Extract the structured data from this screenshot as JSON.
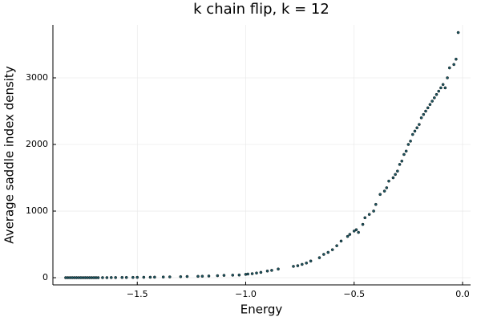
{
  "chart_data": {
    "type": "scatter",
    "title": "k chain flip, k = 12",
    "xlabel": "Energy",
    "ylabel": "Average saddle index density",
    "xlim": [
      -1.889,
      0.037
    ],
    "ylim": [
      -108,
      3795
    ],
    "xticks": [
      {
        "value": -1.5,
        "label": "−1.5"
      },
      {
        "value": -1.0,
        "label": "−1.0"
      },
      {
        "value": -0.5,
        "label": "−0.5"
      },
      {
        "value": 0.0,
        "label": "0.0"
      }
    ],
    "yticks": [
      0,
      1000,
      2000,
      3000
    ],
    "grid": true,
    "color": "#1d5560",
    "x": [
      -1.83,
      -1.82,
      -1.81,
      -1.8,
      -1.79,
      -1.78,
      -1.77,
      -1.76,
      -1.75,
      -1.74,
      -1.73,
      -1.72,
      -1.71,
      -1.7,
      -1.69,
      -1.68,
      -1.66,
      -1.64,
      -1.62,
      -1.6,
      -1.57,
      -1.55,
      -1.52,
      -1.5,
      -1.47,
      -1.44,
      -1.42,
      -1.38,
      -1.35,
      -1.3,
      -1.27,
      -1.22,
      -1.2,
      -1.17,
      -1.13,
      -1.1,
      -1.06,
      -1.03,
      -1.0,
      -0.99,
      -0.97,
      -0.95,
      -0.93,
      -0.9,
      -0.88,
      -0.85,
      -0.78,
      -0.76,
      -0.74,
      -0.72,
      -0.7,
      -0.66,
      -0.64,
      -0.62,
      -0.6,
      -0.58,
      -0.56,
      -0.53,
      -0.52,
      -0.5,
      -0.49,
      -0.48,
      -0.46,
      -0.45,
      -0.43,
      -0.41,
      -0.4,
      -0.38,
      -0.36,
      -0.35,
      -0.34,
      -0.32,
      -0.31,
      -0.3,
      -0.29,
      -0.28,
      -0.27,
      -0.26,
      -0.25,
      -0.24,
      -0.23,
      -0.22,
      -0.21,
      -0.2,
      -0.19,
      -0.18,
      -0.17,
      -0.16,
      -0.15,
      -0.14,
      -0.13,
      -0.12,
      -0.11,
      -0.1,
      -0.09,
      -0.08,
      -0.07,
      -0.06,
      -0.04,
      -0.03,
      -0.02
    ],
    "y": [
      0,
      0,
      0,
      0,
      0,
      0,
      0,
      0,
      0,
      0,
      0,
      0,
      0,
      0,
      0,
      0,
      1,
      1,
      2,
      2,
      3,
      3,
      4,
      5,
      6,
      7,
      8,
      10,
      12,
      15,
      18,
      20,
      22,
      25,
      30,
      35,
      38,
      40,
      50,
      55,
      60,
      70,
      80,
      100,
      110,
      130,
      170,
      180,
      200,
      220,
      250,
      300,
      350,
      380,
      420,
      480,
      550,
      620,
      650,
      700,
      720,
      680,
      800,
      900,
      950,
      1000,
      1100,
      1250,
      1300,
      1350,
      1450,
      1500,
      1550,
      1600,
      1700,
      1750,
      1850,
      1900,
      2000,
      2050,
      2150,
      2200,
      2250,
      2300,
      2400,
      2450,
      2500,
      2550,
      2600,
      2650,
      2700,
      2750,
      2800,
      2850,
      2900,
      2850,
      3000,
      3150,
      3200,
      3280,
      3680
    ]
  }
}
